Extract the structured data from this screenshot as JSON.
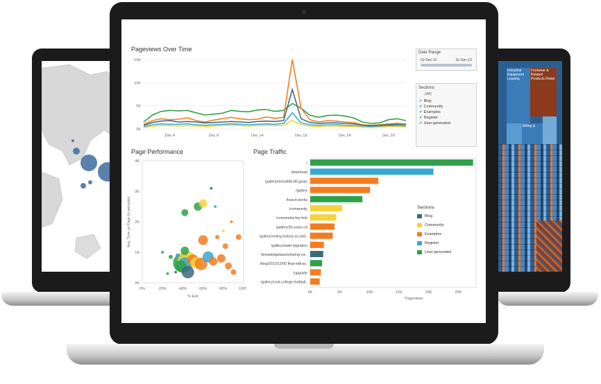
{
  "dashboard": {
    "pageviews_title": "Pageviews Over Time",
    "performance_title": "Page Performance",
    "traffic_title": "Page Traffic",
    "date_range": {
      "label": "Date Range",
      "start": "01-Dec-12",
      "end": "31-Dec-12"
    },
    "sections_filter": {
      "label": "Sections",
      "all": "(All)",
      "items": [
        "Blog",
        "Community",
        "Examples",
        "Register",
        "User-generated"
      ]
    },
    "legend": {
      "title": "Sections",
      "items": [
        {
          "name": "Blog",
          "color": "#3d6b7d"
        },
        {
          "name": "Community",
          "color": "#f5d33b"
        },
        {
          "name": "Examples",
          "color": "#f47c20"
        },
        {
          "name": "Register",
          "color": "#35a9d2"
        },
        {
          "name": "User-generated",
          "color": "#2fa14a"
        }
      ]
    }
  },
  "treemap": {
    "labels": [
      "Industrial Equipment Leasing",
      "Footwear & Related Products Retail",
      "Billing &"
    ]
  },
  "chart_data": [
    {
      "type": "line",
      "title": "Pageviews Over Time",
      "x": [
        "Dec 1",
        "Dec 2",
        "Dec 3",
        "Dec 4",
        "Dec 5",
        "Dec 6",
        "Dec 7",
        "Dec 8",
        "Dec 9",
        "Dec 10",
        "Dec 11",
        "Dec 12",
        "Dec 13",
        "Dec 14",
        "Dec 15",
        "Dec 16",
        "Dec 17",
        "Dec 18",
        "Dec 19",
        "Dec 20",
        "Dec 21",
        "Dec 22",
        "Dec 23",
        "Dec 24",
        "Dec 25",
        "Dec 26",
        "Dec 27",
        "Dec 28",
        "Dec 29",
        "Dec 30",
        "Dec 31"
      ],
      "x_tick_labels": [
        "Dec 4",
        "Dec 9",
        "Dec 14",
        "Dec 19",
        "Dec 24",
        "Dec 29"
      ],
      "y_tick_labels": [
        "0K",
        "5K",
        "10K",
        "15K"
      ],
      "ylim": [
        0,
        15000
      ],
      "series": [
        {
          "color": "#2fa14a",
          "values": [
            1500,
            3000,
            3800,
            4000,
            3900,
            4000,
            3500,
            3000,
            3200,
            3400,
            4000,
            3800,
            3700,
            4100,
            4200,
            3800,
            4000,
            5500,
            4500,
            3000,
            2500,
            2900,
            3000,
            2800,
            2400,
            1500,
            1200,
            1300,
            2000,
            2200,
            1800
          ]
        },
        {
          "color": "#f47c20",
          "values": [
            1000,
            1800,
            2200,
            2000,
            2100,
            2400,
            1800,
            1500,
            1900,
            2200,
            2500,
            2200,
            2000,
            2100,
            2600,
            2300,
            2500,
            15000,
            4500,
            2000,
            1500,
            1800,
            1700,
            1500,
            1400,
            900,
            800,
            900,
            1100,
            1200,
            1100
          ]
        },
        {
          "color": "#3d6b7d",
          "values": [
            800,
            1400,
            1700,
            1800,
            1500,
            1600,
            1500,
            1300,
            1400,
            1500,
            1600,
            1500,
            1400,
            1600,
            1700,
            1600,
            1800,
            8500,
            2200,
            1400,
            1200,
            1300,
            1300,
            1200,
            1100,
            800,
            700,
            800,
            900,
            1000,
            900
          ]
        },
        {
          "color": "#35a9d2",
          "values": [
            500,
            900,
            1100,
            1000,
            1000,
            1100,
            900,
            800,
            900,
            1000,
            1100,
            1000,
            900,
            1000,
            1100,
            1000,
            1200,
            3500,
            1300,
            900,
            800,
            900,
            900,
            800,
            700,
            500,
            500,
            600,
            700,
            700,
            600
          ]
        },
        {
          "color": "#f5d33b",
          "values": [
            300,
            600,
            700,
            700,
            600,
            700,
            600,
            500,
            600,
            700,
            800,
            700,
            600,
            700,
            800,
            700,
            800,
            1800,
            900,
            600,
            500,
            600,
            600,
            500,
            500,
            400,
            300,
            400,
            500,
            500,
            400
          ]
        }
      ]
    },
    {
      "type": "scatter",
      "title": "Page Performance",
      "xlabel": "% Exit",
      "ylabel": "Avg. Time on Page (in seconds)",
      "x_tick_labels": [
        "0%",
        "20%",
        "40%",
        "60%",
        "80%",
        "100%"
      ],
      "y_tick_labels": [
        "0K",
        "1K",
        "2K",
        "3K",
        "4K"
      ],
      "xlim": [
        0,
        100
      ],
      "ylim": [
        0,
        4000
      ],
      "points": [
        {
          "x": 40,
          "y": 650,
          "size": 14,
          "color": "#2fa14a"
        },
        {
          "x": 44,
          "y": 750,
          "size": 13,
          "color": "#f5d33b"
        },
        {
          "x": 42,
          "y": 600,
          "size": 10,
          "color": "#35a9d2"
        },
        {
          "x": 38,
          "y": 550,
          "size": 8,
          "color": "#2fa14a"
        },
        {
          "x": 45,
          "y": 350,
          "size": 9,
          "color": "#3d6b7d"
        },
        {
          "x": 50,
          "y": 750,
          "size": 8,
          "color": "#f47c20"
        },
        {
          "x": 53,
          "y": 650,
          "size": 8,
          "color": "#f5d33b"
        },
        {
          "x": 58,
          "y": 620,
          "size": 9,
          "color": "#f47c20"
        },
        {
          "x": 42,
          "y": 1050,
          "size": 6,
          "color": "#2fa14a"
        },
        {
          "x": 60,
          "y": 1400,
          "size": 7,
          "color": "#f47c20"
        },
        {
          "x": 55,
          "y": 2500,
          "size": 6,
          "color": "#2fa14a"
        },
        {
          "x": 42,
          "y": 2300,
          "size": 5,
          "color": "#2fa14a"
        },
        {
          "x": 60,
          "y": 2600,
          "size": 6,
          "color": "#f5d33b"
        },
        {
          "x": 65,
          "y": 850,
          "size": 8,
          "color": "#35a9d2"
        },
        {
          "x": 70,
          "y": 700,
          "size": 6,
          "color": "#f47c20"
        },
        {
          "x": 78,
          "y": 800,
          "size": 6,
          "color": "#f47c20"
        },
        {
          "x": 82,
          "y": 1200,
          "size": 4,
          "color": "#f47c20"
        },
        {
          "x": 85,
          "y": 550,
          "size": 5,
          "color": "#f47c20"
        },
        {
          "x": 90,
          "y": 350,
          "size": 4,
          "color": "#f47c20"
        },
        {
          "x": 95,
          "y": 1500,
          "size": 4,
          "color": "#f47c20"
        },
        {
          "x": 74,
          "y": 1500,
          "size": 3,
          "color": "#f47c20"
        },
        {
          "x": 80,
          "y": 1700,
          "size": 2,
          "color": "#f5d33b"
        },
        {
          "x": 20,
          "y": 1000,
          "size": 2,
          "color": "#2fa14a"
        },
        {
          "x": 25,
          "y": 300,
          "size": 2,
          "color": "#2fa14a"
        },
        {
          "x": 28,
          "y": 850,
          "size": 3,
          "color": "#2fa14a"
        },
        {
          "x": 35,
          "y": 900,
          "size": 3,
          "color": "#35a9d2"
        },
        {
          "x": 68,
          "y": 3100,
          "size": 2,
          "color": "#3d6b7d"
        },
        {
          "x": 72,
          "y": 2500,
          "size": 2,
          "color": "#35a9d2"
        },
        {
          "x": 88,
          "y": 2000,
          "size": 2,
          "color": "#f47c20"
        },
        {
          "x": 33,
          "y": 350,
          "size": 2,
          "color": "#3d6b7d"
        }
      ]
    },
    {
      "type": "bar",
      "orientation": "horizontal",
      "title": "Page Traffic",
      "xlabel": "Pageviews",
      "x_tick_labels": [
        "0K",
        "5K",
        "10K",
        "15K",
        "20K",
        "25K"
      ],
      "xlim": [
        0,
        28000
      ],
      "categories": [
        "/",
        "/download",
        "/gallery/mesa69b-86-goals",
        "/gallery",
        "/how-it-works",
        "/community",
        "/community/my-hub",
        "/gallery/30-years-cd",
        "/gallery/voting-history-us-stat..",
        "/gallery/state-migration",
        "/knowledgebase/sharing-viz..",
        "/blog/2012/12/05 final-edit-ar..",
        "/upgrade",
        "/gallery/cost-college-football.."
      ],
      "values": [
        27500,
        20800,
        11500,
        10100,
        8800,
        5400,
        4400,
        4100,
        3800,
        2300,
        2200,
        2000,
        1800,
        1600
      ],
      "colors": [
        "#2fa14a",
        "#35a9d2",
        "#f47c20",
        "#f47c20",
        "#2fa14a",
        "#f5d33b",
        "#f5d33b",
        "#f47c20",
        "#f47c20",
        "#f47c20",
        "#3d6b7d",
        "#2fa14a",
        "#f47c20",
        "#f47c20"
      ]
    }
  ]
}
